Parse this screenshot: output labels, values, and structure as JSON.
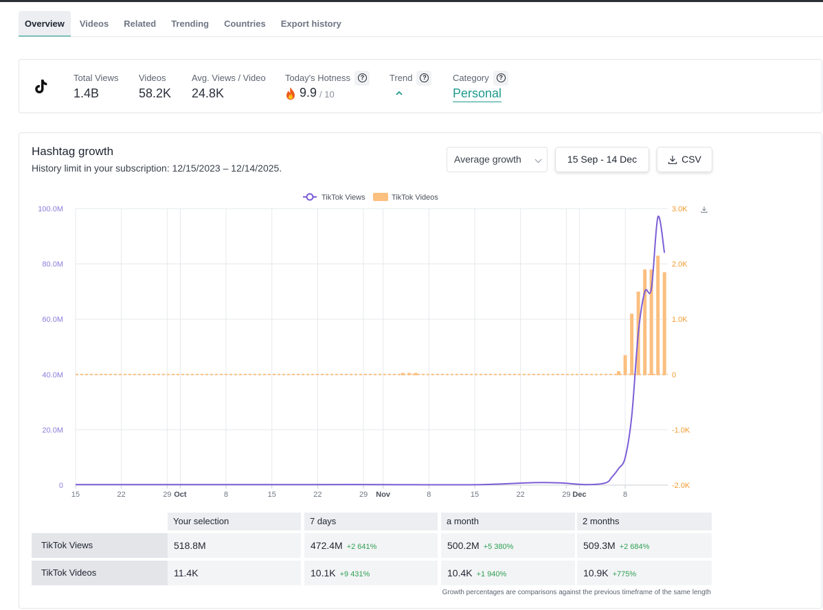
{
  "tabs": [
    {
      "label": "Overview",
      "active": true
    },
    {
      "label": "Videos",
      "active": false
    },
    {
      "label": "Related",
      "active": false
    },
    {
      "label": "Trending",
      "active": false
    },
    {
      "label": "Countries",
      "active": false
    },
    {
      "label": "Export history",
      "active": false
    }
  ],
  "stats": {
    "total_views_label": "Total Views",
    "total_views": "1.4B",
    "videos_label": "Videos",
    "videos": "58.2K",
    "avg_label": "Avg. Views / Video",
    "avg": "24.8K",
    "hotness_label": "Today's Hotness",
    "hotness": "9.9",
    "hotness_max": "/ 10",
    "trend_label": "Trend",
    "trend_icon": "chevron-up-icon",
    "category_label": "Category",
    "category": "Personal"
  },
  "growth": {
    "title": "Hashtag growth",
    "subtitle": "History limit in your subscription: 12/15/2023 – 12/14/2025.",
    "mode": "Average growth",
    "date_range": "15 Sep - 14 Dec",
    "csv_label": "CSV"
  },
  "chart_data": {
    "type": "line",
    "legend_position": "top-center",
    "grid": true,
    "x_tick_labels": [
      "15",
      "22",
      "29",
      "Oct",
      "8",
      "15",
      "22",
      "29",
      "Nov",
      "8",
      "15",
      "22",
      "29",
      "Dec",
      "8"
    ],
    "y_left": {
      "range": [
        0,
        100000000
      ],
      "ticks": [
        "0",
        "20.0M",
        "40.0M",
        "60.0M",
        "80.0M",
        "100.0M"
      ]
    },
    "y_right": {
      "range": [
        -2000,
        3000
      ],
      "ticks": [
        "-2.0K",
        "-1.0K",
        "0",
        "1.0K",
        "2.0K",
        "3.0K"
      ]
    },
    "series": [
      {
        "name": "TikTok Views",
        "type": "line",
        "axis": "left",
        "color": "#7b5cd6",
        "points": [
          [
            "2025-09-15",
            200000
          ],
          [
            "2025-10-01",
            200000
          ],
          [
            "2025-10-20",
            200000
          ],
          [
            "2025-11-01",
            200000
          ],
          [
            "2025-11-15",
            150000
          ],
          [
            "2025-11-24",
            900000
          ],
          [
            "2025-11-28",
            800000
          ],
          [
            "2025-12-02",
            200000
          ],
          [
            "2025-12-05",
            800000
          ],
          [
            "2025-12-06",
            3000000
          ],
          [
            "2025-12-07",
            6000000
          ],
          [
            "2025-12-08",
            10000000
          ],
          [
            "2025-12-09",
            25000000
          ],
          [
            "2025-12-10",
            55000000
          ],
          [
            "2025-12-11",
            70000000
          ],
          [
            "2025-12-12",
            71000000
          ],
          [
            "2025-12-13",
            97000000
          ],
          [
            "2025-12-14",
            84000000
          ]
        ]
      },
      {
        "name": "TikTok Videos",
        "type": "bar",
        "axis": "right",
        "color": "#fbbf80",
        "points": [
          [
            "2025-11-04",
            30
          ],
          [
            "2025-11-05",
            30
          ],
          [
            "2025-11-06",
            30
          ],
          [
            "2025-12-07",
            60
          ],
          [
            "2025-12-08",
            350
          ],
          [
            "2025-12-09",
            1100
          ],
          [
            "2025-12-10",
            1500
          ],
          [
            "2025-12-11",
            1900
          ],
          [
            "2025-12-12",
            1900
          ],
          [
            "2025-12-13",
            2150
          ],
          [
            "2025-12-14",
            1850
          ]
        ]
      }
    ]
  },
  "table": {
    "headers": [
      "Your selection",
      "7 days",
      "a month",
      "2 months"
    ],
    "rows": [
      {
        "label": "TikTok Views",
        "cells": [
          {
            "value": "518.8M",
            "growth": ""
          },
          {
            "value": "472.4M",
            "growth": "+2 641%"
          },
          {
            "value": "500.2M",
            "growth": "+5 380%"
          },
          {
            "value": "509.3M",
            "growth": "+2 684%"
          }
        ]
      },
      {
        "label": "TikTok Videos",
        "cells": [
          {
            "value": "11.4K",
            "growth": ""
          },
          {
            "value": "10.1K",
            "growth": "+9 431%"
          },
          {
            "value": "10.4K",
            "growth": "+1 940%"
          },
          {
            "value": "10.9K",
            "growth": "+775%"
          }
        ]
      }
    ],
    "footnote": "Growth percentages are comparisons against the previous timeframe of the same length"
  }
}
